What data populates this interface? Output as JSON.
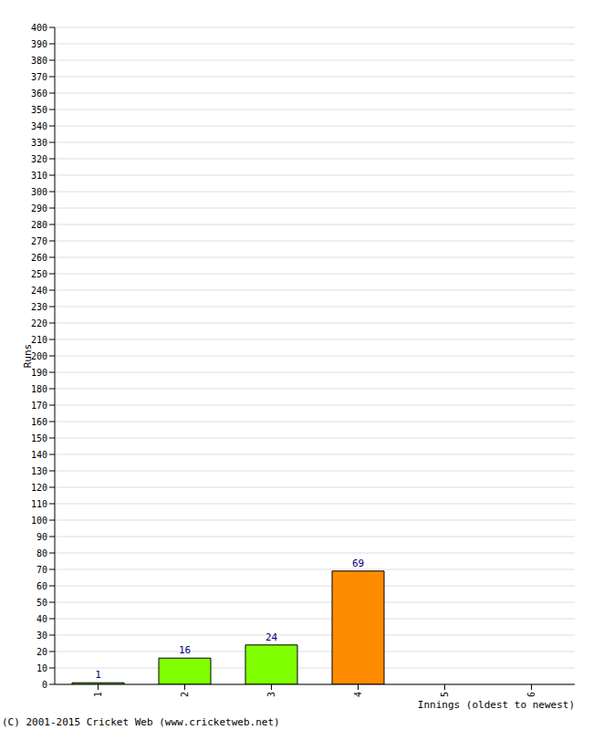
{
  "chart_data": {
    "type": "bar",
    "categories": [
      "1",
      "2",
      "3",
      "4",
      "5",
      "6"
    ],
    "values": [
      1,
      16,
      24,
      69,
      0,
      0
    ],
    "colors": [
      "#80ff00",
      "#80ff00",
      "#80ff00",
      "#ff8c00",
      "#80ff00",
      "#80ff00"
    ],
    "ylim": [
      0,
      400
    ],
    "yticks": [
      0,
      10,
      20,
      30,
      40,
      50,
      60,
      70,
      80,
      90,
      100,
      110,
      120,
      130,
      140,
      150,
      160,
      170,
      180,
      190,
      200,
      210,
      220,
      230,
      240,
      250,
      260,
      270,
      280,
      290,
      300,
      310,
      320,
      330,
      340,
      350,
      360,
      370,
      380,
      390,
      400
    ],
    "grid": true,
    "data_labels": true,
    "x_label": "Innings (oldest to newest)",
    "y_label": "Runs",
    "annotations": [
      "(C) 2001-2015 Cricket Web (www.cricketweb.net)"
    ]
  }
}
